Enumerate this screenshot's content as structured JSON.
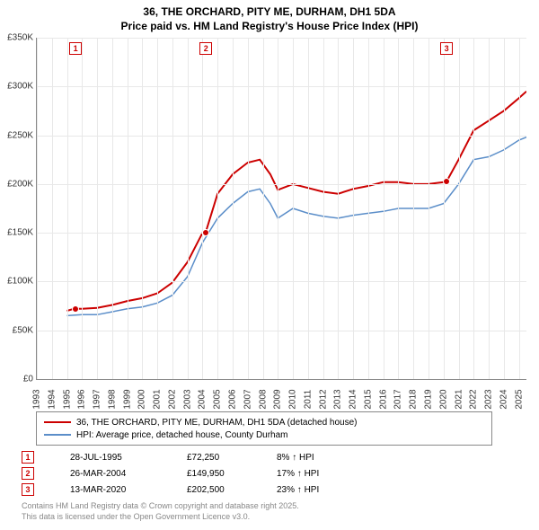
{
  "title": {
    "line1": "36, THE ORCHARD, PITY ME, DURHAM, DH1 5DA",
    "line2": "Price paid vs. HM Land Registry's House Price Index (HPI)",
    "fontsize": 12,
    "weight": "bold"
  },
  "chart": {
    "type": "line",
    "background": "#ffffff",
    "grid_color": "#e8e8e8",
    "axis_color": "#888888",
    "y": {
      "min": 0,
      "max": 350000,
      "ticks": [
        0,
        50000,
        100000,
        150000,
        200000,
        250000,
        300000,
        350000
      ],
      "labels": [
        "£0",
        "£50K",
        "£100K",
        "£150K",
        "£200K",
        "£250K",
        "£300K",
        "£350K"
      ],
      "fontsize": 10
    },
    "x": {
      "min": 1993,
      "max": 2025.5,
      "ticks": [
        1993,
        1994,
        1995,
        1996,
        1997,
        1998,
        1999,
        2000,
        2001,
        2002,
        2003,
        2004,
        2005,
        2006,
        2007,
        2008,
        2009,
        2010,
        2011,
        2012,
        2013,
        2014,
        2015,
        2016,
        2017,
        2018,
        2019,
        2020,
        2021,
        2022,
        2023,
        2024,
        2025
      ],
      "fontsize": 10
    },
    "series": [
      {
        "name": "36, THE ORCHARD, PITY ME, DURHAM, DH1 5DA (detached house)",
        "color": "#cc0000",
        "width": 2,
        "points": [
          [
            1995.0,
            70000
          ],
          [
            1995.5,
            72250
          ],
          [
            1996,
            72000
          ],
          [
            1997,
            73000
          ],
          [
            1998,
            76000
          ],
          [
            1999,
            80000
          ],
          [
            2000,
            83000
          ],
          [
            2001,
            88000
          ],
          [
            2002,
            99000
          ],
          [
            2003,
            120000
          ],
          [
            2004,
            150000
          ],
          [
            2004.2,
            149950
          ],
          [
            2005,
            190000
          ],
          [
            2006,
            210000
          ],
          [
            2007,
            222000
          ],
          [
            2007.8,
            225000
          ],
          [
            2008.5,
            210000
          ],
          [
            2009,
            194000
          ],
          [
            2010,
            200000
          ],
          [
            2011,
            196000
          ],
          [
            2012,
            192000
          ],
          [
            2013,
            190000
          ],
          [
            2014,
            195000
          ],
          [
            2015,
            198000
          ],
          [
            2016,
            202000
          ],
          [
            2017,
            202000
          ],
          [
            2018,
            200000
          ],
          [
            2019,
            200000
          ],
          [
            2020,
            202000
          ],
          [
            2020.2,
            202500
          ],
          [
            2021,
            225000
          ],
          [
            2022,
            255000
          ],
          [
            2023,
            265000
          ],
          [
            2024,
            275000
          ],
          [
            2025,
            288000
          ],
          [
            2025.5,
            295000
          ]
        ]
      },
      {
        "name": "HPI: Average price, detached house, County Durham",
        "color": "#5b8ec9",
        "width": 1.5,
        "points": [
          [
            1995.0,
            65000
          ],
          [
            1996,
            66000
          ],
          [
            1997,
            66000
          ],
          [
            1998,
            69000
          ],
          [
            1999,
            72000
          ],
          [
            2000,
            74000
          ],
          [
            2001,
            78000
          ],
          [
            2002,
            86000
          ],
          [
            2003,
            105000
          ],
          [
            2004,
            140000
          ],
          [
            2005,
            165000
          ],
          [
            2006,
            180000
          ],
          [
            2007,
            192000
          ],
          [
            2007.8,
            195000
          ],
          [
            2008.5,
            180000
          ],
          [
            2009,
            165000
          ],
          [
            2010,
            175000
          ],
          [
            2011,
            170000
          ],
          [
            2012,
            167000
          ],
          [
            2013,
            165000
          ],
          [
            2014,
            168000
          ],
          [
            2015,
            170000
          ],
          [
            2016,
            172000
          ],
          [
            2017,
            175000
          ],
          [
            2018,
            175000
          ],
          [
            2019,
            175000
          ],
          [
            2020,
            180000
          ],
          [
            2021,
            200000
          ],
          [
            2022,
            225000
          ],
          [
            2023,
            228000
          ],
          [
            2024,
            235000
          ],
          [
            2025,
            245000
          ],
          [
            2025.5,
            248000
          ]
        ]
      }
    ],
    "sale_markers": [
      {
        "n": "1",
        "year": 1995.57,
        "price": 72250
      },
      {
        "n": "2",
        "year": 2004.23,
        "price": 149950
      },
      {
        "n": "3",
        "year": 2020.2,
        "price": 202500
      }
    ]
  },
  "legend": {
    "border_color": "#888888",
    "items": [
      {
        "color": "#cc0000",
        "width": 2,
        "label": "36, THE ORCHARD, PITY ME, DURHAM, DH1 5DA (detached house)"
      },
      {
        "color": "#5b8ec9",
        "width": 1.5,
        "label": "HPI: Average price, detached house, County Durham"
      }
    ]
  },
  "sales": [
    {
      "n": "1",
      "date": "28-JUL-1995",
      "price": "£72,250",
      "diff": "8% ↑ HPI"
    },
    {
      "n": "2",
      "date": "26-MAR-2004",
      "price": "£149,950",
      "diff": "17% ↑ HPI"
    },
    {
      "n": "3",
      "date": "13-MAR-2020",
      "price": "£202,500",
      "diff": "23% ↑ HPI"
    }
  ],
  "footer": {
    "line1": "Contains HM Land Registry data © Crown copyright and database right 2025.",
    "line2": "This data is licensed under the Open Government Licence v3.0."
  }
}
